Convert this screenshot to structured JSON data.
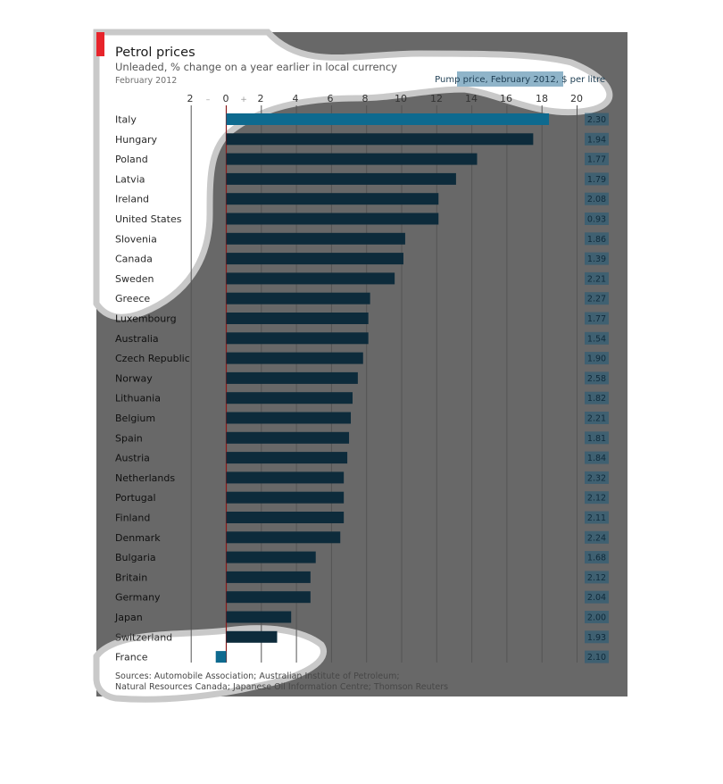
{
  "chart_data": {
    "type": "bar",
    "orientation": "horizontal",
    "title": "Petrol prices",
    "subtitle": "Unleaded, % change on a year earlier in local currency",
    "date_label": "February 2012",
    "price_header": "Pump price, February 2012, $ per litre",
    "x_ticks": [
      "2",
      "–",
      "0",
      "+",
      "2",
      "4",
      "6",
      "8",
      "10",
      "12",
      "14",
      "16",
      "18",
      "20"
    ],
    "xlim": [
      -2,
      20
    ],
    "grid": true,
    "categories": [
      "Italy",
      "Hungary",
      "Poland",
      "Latvia",
      "Ireland",
      "United States",
      "Slovenia",
      "Canada",
      "Sweden",
      "Greece",
      "Luxembourg",
      "Australia",
      "Czech Republic",
      "Norway",
      "Lithuania",
      "Belgium",
      "Spain",
      "Austria",
      "Netherlands",
      "Portugal",
      "Finland",
      "Denmark",
      "Bulgaria",
      "Britain",
      "Germany",
      "Japan",
      "Switzerland",
      "France"
    ],
    "values": [
      18.4,
      17.5,
      14.3,
      13.1,
      12.1,
      12.1,
      10.2,
      10.1,
      9.6,
      8.2,
      8.1,
      8.1,
      7.8,
      7.5,
      7.2,
      7.1,
      7.0,
      6.9,
      6.7,
      6.7,
      6.7,
      6.5,
      5.1,
      4.8,
      4.8,
      3.7,
      2.9,
      -0.6
    ],
    "prices": [
      "2.30",
      "1.94",
      "1.77",
      "1.79",
      "2.08",
      "0.93",
      "1.86",
      "1.39",
      "2.21",
      "2.27",
      "1.77",
      "1.54",
      "1.90",
      "2.58",
      "1.82",
      "2.21",
      "1.81",
      "1.84",
      "2.32",
      "2.12",
      "2.11",
      "2.24",
      "1.68",
      "2.12",
      "2.04",
      "2.00",
      "1.93",
      "2.10"
    ],
    "highlight_categories": [
      "Italy",
      "France"
    ],
    "sources": [
      "Sources: Automobile Association; Australian Institute of Petroleum;",
      "Natural Resources Canada; Japanese Oil Information Centre; Thomson Reuters"
    ]
  },
  "colors": {
    "bar": "#0d2b3b",
    "highlight_bar": "#0e6a8f",
    "price_box": "#1d5a78",
    "overlay": "#686868",
    "accent": "#e7242b",
    "grid": "#555555",
    "highlight": "#ffffff"
  }
}
